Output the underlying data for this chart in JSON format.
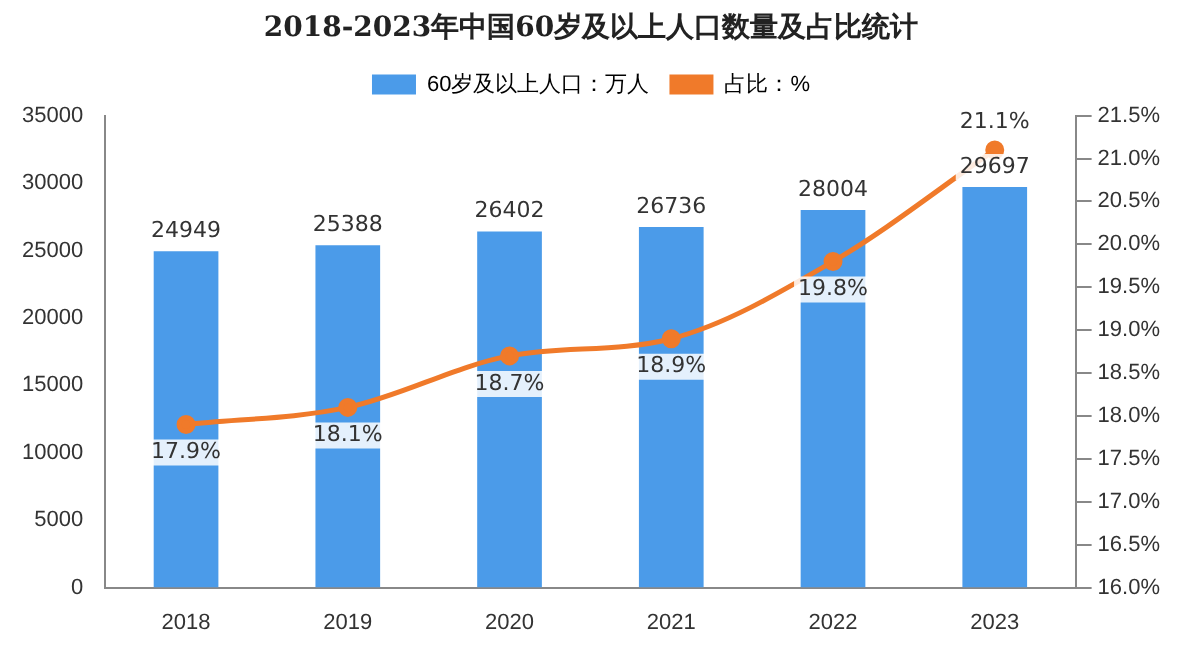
{
  "chart_data": {
    "type": "bar",
    "title": "2018-2023年中国60岁及以上人口数量及占比统计",
    "categories": [
      "2018",
      "2019",
      "2020",
      "2021",
      "2022",
      "2023"
    ],
    "series": [
      {
        "name": "60岁及以上人口：万人",
        "color": "#4b9be9",
        "values": [
          24949,
          25388,
          26402,
          26736,
          28004,
          29697
        ],
        "value_labels": [
          "24949",
          "25388",
          "26402",
          "26736",
          "28004",
          "29697"
        ]
      },
      {
        "name": "占比：%",
        "type": "line",
        "axis": "y2",
        "color": "#f07a2a",
        "values": [
          17.9,
          18.1,
          18.7,
          18.9,
          19.8,
          21.1
        ],
        "value_labels": [
          "17.9%",
          "18.1%",
          "18.7%",
          "18.9%",
          "19.8%",
          "21.1%"
        ]
      }
    ],
    "ylim": [
      0,
      35000
    ],
    "yticks": [
      0,
      5000,
      10000,
      15000,
      20000,
      25000,
      30000,
      35000
    ],
    "y2lim": [
      16,
      21.5
    ],
    "y2ticks": [
      {
        "value": 16,
        "label": "16.0%"
      },
      {
        "value": 16.5,
        "label": "16.5%"
      },
      {
        "value": 17,
        "label": "17.0%"
      },
      {
        "value": 17.5,
        "label": "17.5%"
      },
      {
        "value": 18,
        "label": "18.0%"
      },
      {
        "value": 18.5,
        "label": "18.5%"
      },
      {
        "value": 19,
        "label": "19.0%"
      },
      {
        "value": 19.5,
        "label": "19.5%"
      },
      {
        "value": 20,
        "label": "20.0%"
      },
      {
        "value": 20.5,
        "label": "20.5%"
      },
      {
        "value": 21,
        "label": "21.0%"
      },
      {
        "value": 21.5,
        "label": "21.5%"
      }
    ],
    "grid": false,
    "legend": "top",
    "marker": "circle",
    "line_style": "solid"
  }
}
